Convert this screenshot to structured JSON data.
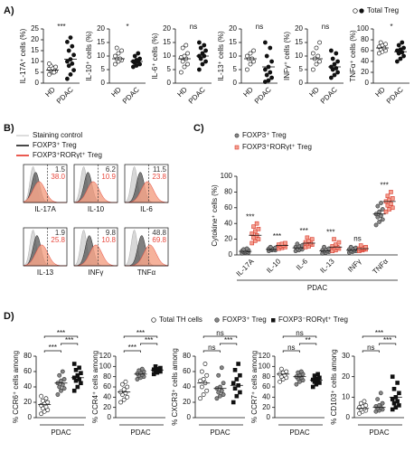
{
  "figure": {
    "panel_labels": [
      "A)",
      "B)",
      "C)",
      "D)"
    ],
    "legend_A": "Total Treg",
    "legend_D": [
      "Total TH cells",
      "FOXP3⁺ Treg",
      "FOXP3⁻RORγt⁺ Treg"
    ]
  },
  "chart_data": [
    {
      "type": "dotplot",
      "ylabel": "IL-17A⁺ cells (%)",
      "categories": [
        "HD",
        "PDAC"
      ],
      "markers": [
        "open",
        "filled"
      ],
      "values": [
        [
          4,
          5,
          5.5,
          6,
          6,
          6.5,
          7,
          7.5,
          8,
          5,
          9
        ],
        [
          2,
          4,
          6,
          8,
          9,
          10,
          11,
          13,
          15,
          17,
          19,
          21
        ]
      ],
      "means": [
        6,
        11
      ],
      "significance": "***",
      "ylim": [
        0,
        25
      ],
      "yticks": [
        0,
        5,
        10,
        15,
        20,
        25
      ]
    },
    {
      "type": "dotplot",
      "ylabel": "IL-10⁺ cells (%)",
      "categories": [
        "HD",
        "PDAC"
      ],
      "markers": [
        "open",
        "filled"
      ],
      "values": [
        [
          7,
          8,
          8.5,
          9,
          9,
          10,
          11,
          12,
          13
        ],
        [
          6,
          6.5,
          7,
          7.5,
          8,
          8,
          8.5,
          9,
          10,
          11
        ]
      ],
      "means": [
        9,
        8
      ],
      "significance": "*",
      "ylim": [
        0,
        20
      ],
      "yticks": [
        0,
        5,
        10,
        15,
        20
      ]
    },
    {
      "type": "dotplot",
      "ylabel": "IL-6⁺ cells (%)",
      "categories": [
        "HD",
        "PDAC"
      ],
      "markers": [
        "open",
        "filled"
      ],
      "values": [
        [
          4,
          6,
          7,
          8,
          9,
          9.5,
          10,
          11,
          13,
          14
        ],
        [
          5,
          7,
          8,
          9,
          10,
          10,
          11,
          12,
          13,
          14,
          15
        ]
      ],
      "means": [
        9,
        10
      ],
      "significance": "ns",
      "ylim": [
        0,
        20
      ],
      "yticks": [
        0,
        5,
        10,
        15,
        20
      ]
    },
    {
      "type": "dotplot",
      "ylabel": "IL-13⁺ cells (%)",
      "categories": [
        "HD",
        "PDAC"
      ],
      "markers": [
        "open",
        "filled"
      ],
      "values": [
        [
          5,
          7,
          8,
          9,
          9,
          10,
          11,
          12
        ],
        [
          0.5,
          1,
          2,
          3,
          4,
          5,
          6,
          8,
          10,
          13,
          15
        ]
      ],
      "means": [
        9,
        6
      ],
      "significance": "ns",
      "ylim": [
        0,
        20
      ],
      "yticks": [
        0,
        5,
        10,
        15,
        20
      ]
    },
    {
      "type": "dotplot",
      "ylabel": "INFγ⁺ cells (%)",
      "categories": [
        "HD",
        "PDAC"
      ],
      "markers": [
        "open",
        "filled"
      ],
      "values": [
        [
          5,
          7,
          8,
          9,
          10,
          11,
          13,
          15
        ],
        [
          2,
          3,
          4,
          5,
          5.5,
          6,
          7,
          8,
          9,
          11,
          12
        ]
      ],
      "means": [
        9,
        6
      ],
      "significance": "ns",
      "ylim": [
        0,
        20
      ],
      "yticks": [
        0,
        5,
        10,
        15,
        20
      ]
    },
    {
      "type": "dotplot",
      "ylabel": "TNFα⁺ cells (%)",
      "categories": [
        "HD",
        "PDAC"
      ],
      "markers": [
        "open",
        "filled"
      ],
      "values": [
        [
          55,
          58,
          60,
          63,
          65,
          67,
          70,
          72,
          75
        ],
        [
          40,
          45,
          50,
          55,
          57,
          60,
          62,
          65,
          70,
          75
        ]
      ],
      "means": [
        65,
        58
      ],
      "significance": "*",
      "ylim": [
        0,
        100
      ],
      "yticks": [
        0,
        20,
        40,
        60,
        80,
        100
      ]
    },
    {
      "type": "flow-histogram",
      "control_name": "Staining control",
      "categories": [
        "IL-17A",
        "IL-10",
        "IL-6",
        "IL-13",
        "INFγ",
        "TNFα"
      ],
      "series": [
        {
          "name": "FOXP3⁺ Treg",
          "color": "#333333",
          "values": [
            1.5,
            6.2,
            11.5,
            1.9,
            9.8,
            48.8
          ]
        },
        {
          "name": "FOXP3⁺RORγt⁺ Treg",
          "color": "#e8473c",
          "values": [
            38,
            10.9,
            23.8,
            25.8,
            10.8,
            69.8
          ],
          "value_labels": [
            "38.0",
            "10.9",
            "23.8",
            "25.8",
            "10.8",
            "69.8"
          ]
        }
      ]
    },
    {
      "type": "grouped-dotplot",
      "ylabel": "Cytokine⁺ cells (%)",
      "xlabel": "PDAC",
      "categories": [
        "IL-17A",
        "IL-10",
        "IL-6",
        "IL-13",
        "INFγ",
        "TNFα"
      ],
      "series": [
        {
          "name": "FOXP3⁺ Treg",
          "color": "#888888",
          "marker": "grey",
          "values": [
            [
              2,
              3,
              3,
              4,
              4,
              5,
              5,
              6,
              7,
              8
            ],
            [
              5,
              6,
              6,
              7,
              7,
              8,
              8,
              9,
              10
            ],
            [
              5,
              6,
              7,
              8,
              9,
              10,
              11,
              12,
              14
            ],
            [
              2,
              3,
              4,
              5,
              5,
              6,
              7,
              8,
              10
            ],
            [
              3,
              4,
              5,
              5,
              6,
              7,
              8,
              9,
              10
            ],
            [
              38,
              42,
              45,
              48,
              50,
              52,
              55,
              58,
              62,
              66
            ]
          ],
          "means": [
            4.5,
            7,
            9,
            5,
            6,
            52
          ]
        },
        {
          "name": "FOXP3⁺RORγt⁺ Treg",
          "color": "#ef7b6e",
          "marker": "square-red",
          "values": [
            [
              15,
              18,
              20,
              22,
              25,
              27,
              30,
              33,
              36,
              40
            ],
            [
              8,
              9,
              10,
              11,
              12,
              13,
              14,
              15
            ],
            [
              10,
              11,
              13,
              14,
              15,
              16,
              18,
              20,
              22
            ],
            [
              5,
              6,
              8,
              9,
              10,
              11,
              13,
              16,
              20
            ],
            [
              5,
              6,
              7,
              7,
              8,
              8,
              9,
              10,
              12
            ],
            [
              55,
              58,
              60,
              63,
              65,
              68,
              70,
              72,
              75,
              80
            ]
          ],
          "means": [
            25,
            12,
            15,
            10,
            8,
            68
          ]
        }
      ],
      "significance": [
        "***",
        "***",
        "***",
        "***",
        "ns",
        "***"
      ],
      "ylim": [
        0,
        100
      ],
      "yticks": [
        0,
        20,
        40,
        60,
        80,
        100
      ]
    },
    {
      "type": "dotplot",
      "ylabel": "% CCR6⁺ cells among",
      "xlabel": "PDAC",
      "markers": [
        "open",
        "grey",
        "square"
      ],
      "values": [
        [
          5,
          8,
          10,
          12,
          14,
          16,
          18,
          20,
          22,
          25,
          28
        ],
        [
          30,
          35,
          38,
          40,
          43,
          45,
          48,
          50,
          55,
          60
        ],
        [
          35,
          40,
          45,
          48,
          50,
          52,
          55,
          58,
          62,
          65,
          70
        ]
      ],
      "means": [
        17,
        45,
        52
      ],
      "significance": [
        "***",
        "***",
        "***"
      ],
      "ylim": [
        0,
        80
      ],
      "yticks": [
        0,
        20,
        40,
        60,
        80
      ]
    },
    {
      "type": "dotplot",
      "ylabel": "% CCR4⁺ cells among",
      "xlabel": "PDAC",
      "markers": [
        "open",
        "grey",
        "square"
      ],
      "values": [
        [
          30,
          35,
          40,
          45,
          48,
          50,
          55,
          60,
          65,
          70
        ],
        [
          75,
          78,
          80,
          82,
          84,
          86,
          88,
          90,
          92,
          95
        ],
        [
          85,
          88,
          90,
          92,
          93,
          94,
          95,
          97,
          100
        ]
      ],
      "means": [
        50,
        85,
        93
      ],
      "significance": [
        "***",
        "***",
        "***"
      ],
      "ylim": [
        0,
        120
      ],
      "yticks": [
        0,
        20,
        40,
        60,
        80,
        100,
        120
      ]
    },
    {
      "type": "dotplot",
      "ylabel": "% CXCR3⁺ cells among",
      "xlabel": "PDAC",
      "markers": [
        "open",
        "grey",
        "square"
      ],
      "values": [
        [
          25,
          30,
          35,
          40,
          45,
          48,
          50,
          55,
          60,
          70
        ],
        [
          25,
          28,
          30,
          33,
          35,
          38,
          40,
          45,
          55,
          65
        ],
        [
          20,
          28,
          33,
          38,
          42,
          45,
          50,
          55,
          62,
          70
        ]
      ],
      "means": [
        45,
        38,
        42
      ],
      "significance": [
        "ns",
        "ns",
        "***"
      ],
      "ylim": [
        0,
        80
      ],
      "yticks": [
        0,
        20,
        40,
        60,
        80
      ]
    },
    {
      "type": "dotplot",
      "ylabel": "% CCR7⁺ cells among",
      "xlabel": "PDAC",
      "markers": [
        "open",
        "grey",
        "square"
      ],
      "values": [
        [
          70,
          75,
          78,
          80,
          83,
          85,
          88,
          90,
          95
        ],
        [
          65,
          70,
          73,
          76,
          78,
          80,
          82,
          85,
          88,
          90
        ],
        [
          60,
          65,
          68,
          70,
          72,
          74,
          76,
          78,
          82,
          85
        ]
      ],
      "means": [
        85,
        80,
        73
      ],
      "significance": [
        "ns",
        "ns",
        "**"
      ],
      "ylim": [
        0,
        120
      ],
      "yticks": [
        0,
        20,
        40,
        60,
        80,
        100,
        120
      ]
    },
    {
      "type": "dotplot",
      "ylabel": "% CD103⁺ cells among",
      "xlabel": "PDAC",
      "markers": [
        "open",
        "grey",
        "square"
      ],
      "values": [
        [
          2,
          3,
          3.5,
          4,
          4.5,
          5,
          5.5,
          6,
          7,
          8
        ],
        [
          3,
          3.5,
          4,
          4.5,
          5,
          5.5,
          6,
          7,
          9,
          12
        ],
        [
          4,
          5,
          6,
          7,
          8,
          9,
          10,
          12,
          14,
          17,
          20
        ]
      ],
      "means": [
        4.5,
        5,
        10
      ],
      "significance": [
        "ns",
        "***",
        "***"
      ],
      "ylim": [
        0,
        30
      ],
      "yticks": [
        0,
        10,
        20,
        30
      ]
    }
  ]
}
